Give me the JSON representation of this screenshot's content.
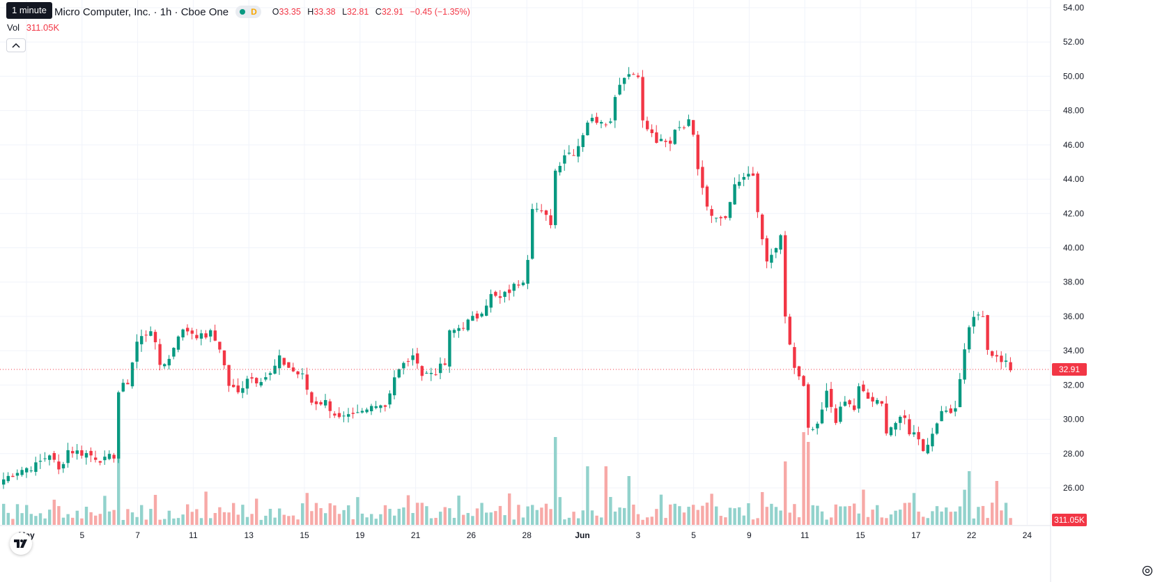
{
  "header": {
    "title": "Micro Computer, Inc. · 1h · Cboe One",
    "status_letter": "D",
    "ohlc": [
      {
        "key": "O",
        "value": "33.35"
      },
      {
        "key": "H",
        "value": "33.38"
      },
      {
        "key": "L",
        "value": "32.81"
      },
      {
        "key": "C",
        "value": "32.91"
      },
      {
        "key": "",
        "value": "−0.45 (−1.35%)"
      }
    ],
    "tooltip": "1 minute"
  },
  "volume": {
    "label": "Vol",
    "value": "311.05K"
  },
  "colors": {
    "up": "#089981",
    "down": "#f23645",
    "up_volume": "#92d2cc",
    "down_volume": "#f7a9a7",
    "grid": "#f0f3fa",
    "axis_text": "#131722"
  },
  "icons": {
    "collapse": "chevron-up-icon",
    "logo": "tradingview-logo-icon",
    "settings": "gear-icon"
  },
  "chart_data": {
    "type": "candlestick",
    "title": "Micro Computer, Inc. · 1h · Cboe One",
    "ylim": [
      24.5,
      54.5
    ],
    "y_ticks": [
      "54.00",
      "52.00",
      "50.00",
      "48.00",
      "46.00",
      "44.00",
      "42.00",
      "40.00",
      "38.00",
      "36.00",
      "34.00",
      "32.00",
      "30.00",
      "28.00",
      "26.00"
    ],
    "x_ticks": [
      "May",
      "5",
      "7",
      "11",
      "13",
      "15",
      "19",
      "21",
      "26",
      "28",
      "Jun",
      "3",
      "5",
      "9",
      "11",
      "15",
      "17",
      "22",
      "24"
    ],
    "x_tick_bars": [
      5,
      17,
      29,
      41,
      53,
      65,
      77,
      89,
      101,
      113,
      125,
      137,
      149,
      161,
      173,
      185,
      197,
      209,
      221
    ],
    "last_price": "32.91",
    "last_volume": "311.05K",
    "bar_count": 220,
    "anchors": [
      [
        0,
        26.5
      ],
      [
        3,
        27.0
      ],
      [
        7,
        27.3
      ],
      [
        10,
        28.0
      ],
      [
        12,
        27.0
      ],
      [
        14,
        28.2
      ],
      [
        18,
        28.0
      ],
      [
        22,
        27.6
      ],
      [
        24,
        27.9
      ],
      [
        25,
        31.6
      ],
      [
        27,
        32.2
      ],
      [
        29,
        34.5
      ],
      [
        32,
        35.3
      ],
      [
        34,
        33.2
      ],
      [
        36,
        33.5
      ],
      [
        38,
        35.0
      ],
      [
        40,
        35.2
      ],
      [
        43,
        34.8
      ],
      [
        45,
        35.0
      ],
      [
        47,
        34.2
      ],
      [
        49,
        32.0
      ],
      [
        51,
        31.5
      ],
      [
        53,
        32.5
      ],
      [
        55,
        32.3
      ],
      [
        58,
        32.6
      ],
      [
        60,
        33.5
      ],
      [
        63,
        32.8
      ],
      [
        65,
        32.5
      ],
      [
        67,
        31.0
      ],
      [
        70,
        31.0
      ],
      [
        73,
        30.0
      ],
      [
        76,
        30.1
      ],
      [
        79,
        30.5
      ],
      [
        81,
        31.0
      ],
      [
        83,
        30.8
      ],
      [
        85,
        32.5
      ],
      [
        88,
        33.5
      ],
      [
        90,
        33.5
      ],
      [
        91,
        32.6
      ],
      [
        94,
        32.8
      ],
      [
        96,
        33.2
      ],
      [
        97,
        35.0
      ],
      [
        100,
        35.5
      ],
      [
        103,
        36.0
      ],
      [
        106,
        37.2
      ],
      [
        108,
        37.0
      ],
      [
        110,
        37.5
      ],
      [
        113,
        38.2
      ],
      [
        114,
        39.5
      ],
      [
        115,
        42.5
      ],
      [
        117,
        42.0
      ],
      [
        119,
        41.5
      ],
      [
        120,
        44.5
      ],
      [
        122,
        45.5
      ],
      [
        124,
        45.6
      ],
      [
        125,
        46.0
      ],
      [
        127,
        47.4
      ],
      [
        130,
        47.5
      ],
      [
        132,
        47.3
      ],
      [
        133,
        49.0
      ],
      [
        135,
        50.1
      ],
      [
        138,
        50.2
      ],
      [
        139,
        47.3
      ],
      [
        142,
        46.2
      ],
      [
        145,
        46.0
      ],
      [
        146,
        47.0
      ],
      [
        149,
        47.3
      ],
      [
        150,
        46.8
      ],
      [
        151,
        44.8
      ],
      [
        153,
        42.5
      ],
      [
        155,
        41.7
      ],
      [
        157,
        41.8
      ],
      [
        159,
        43.5
      ],
      [
        162,
        44.5
      ],
      [
        163,
        44.0
      ],
      [
        164,
        42.0
      ],
      [
        166,
        39.0
      ],
      [
        168,
        40.0
      ],
      [
        169,
        40.5
      ],
      [
        170,
        35.8
      ],
      [
        172,
        33.0
      ],
      [
        174,
        31.8
      ],
      [
        175,
        29.3
      ],
      [
        177,
        29.5
      ],
      [
        179,
        31.5
      ],
      [
        181,
        30.0
      ],
      [
        183,
        31.0
      ],
      [
        185,
        30.6
      ],
      [
        186,
        31.8
      ],
      [
        188,
        31.2
      ],
      [
        191,
        30.8
      ],
      [
        192,
        29.4
      ],
      [
        194,
        29.8
      ],
      [
        196,
        30.0
      ],
      [
        197,
        29.3
      ],
      [
        199,
        29.0
      ],
      [
        200,
        28.3
      ],
      [
        201,
        28.5
      ],
      [
        203,
        30.0
      ],
      [
        205,
        30.5
      ],
      [
        207,
        30.7
      ],
      [
        208,
        32.5
      ],
      [
        210,
        35.5
      ],
      [
        212,
        36.2
      ],
      [
        213,
        35.8
      ],
      [
        214,
        34.0
      ],
      [
        216,
        33.5
      ],
      [
        218,
        33.5
      ],
      [
        219,
        32.9
      ]
    ],
    "volume_spikes": [
      {
        "bar": 25,
        "value": "high",
        "level": 0.85
      },
      {
        "bar": 120,
        "level": 0.9
      },
      {
        "bar": 127,
        "level": 0.6
      },
      {
        "bar": 131,
        "level": 0.6
      },
      {
        "bar": 136,
        "level": 0.5
      },
      {
        "bar": 170,
        "level": 0.65
      },
      {
        "bar": 174,
        "level": 0.95
      },
      {
        "bar": 175,
        "level": 0.85
      },
      {
        "bar": 210,
        "level": 0.55
      },
      {
        "bar": 216,
        "level": 0.45
      }
    ]
  }
}
